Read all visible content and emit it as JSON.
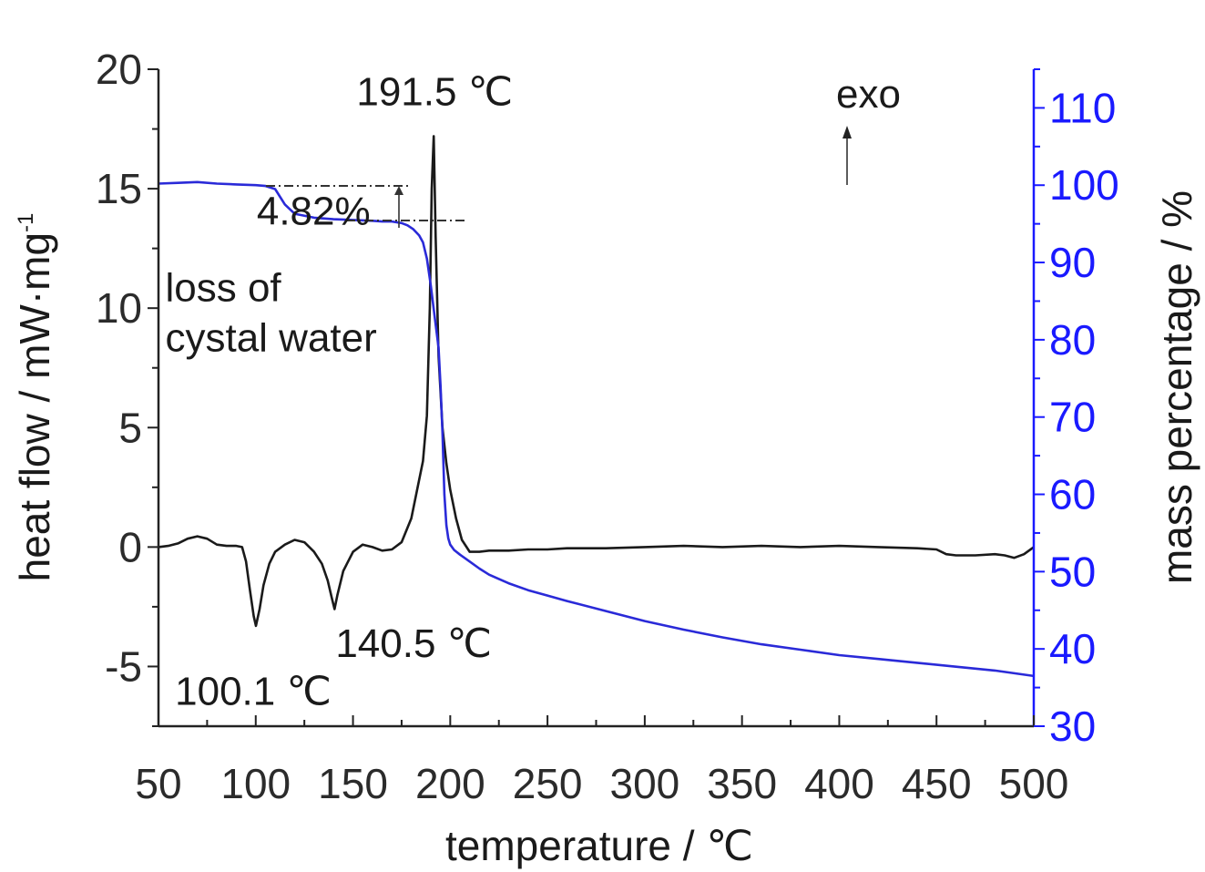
{
  "chart_data": {
    "type": "line",
    "xlabel": "temperature / ℃",
    "ylabel_left": "heat flow / mW·mg",
    "ylabel_left_sup": "-1",
    "ylabel_right": "mass percentage / %",
    "xlim": [
      50,
      500
    ],
    "ylim_left": [
      -7.5,
      20
    ],
    "ylim_right": [
      30,
      115
    ],
    "x_ticks": [
      50,
      100,
      150,
      200,
      250,
      300,
      350,
      400,
      450,
      500
    ],
    "y_left_ticks": [
      -5,
      0,
      5,
      10,
      15,
      20
    ],
    "y_right_ticks": [
      30,
      40,
      50,
      60,
      70,
      80,
      90,
      100,
      110
    ],
    "grid": false,
    "series": [
      {
        "axis": "left",
        "color": "#1a1a1a",
        "x": [
          50,
          55,
          60,
          65,
          70,
          75,
          80,
          85,
          90,
          93,
          95,
          97,
          99,
          100.1,
          102,
          104,
          107,
          110,
          115,
          120,
          125,
          130,
          134,
          137,
          139,
          140.5,
          142,
          145,
          150,
          155,
          160,
          165,
          170,
          175,
          180,
          183,
          186,
          188,
          189.5,
          190.5,
          191.5,
          192.5,
          194,
          196,
          198,
          200,
          203,
          206,
          210,
          215,
          220,
          230,
          240,
          250,
          260,
          270,
          280,
          300,
          320,
          340,
          360,
          380,
          400,
          420,
          440,
          450,
          455,
          460,
          470,
          480,
          485,
          490,
          495,
          500
        ],
        "y": [
          0,
          0.05,
          0.15,
          0.35,
          0.45,
          0.35,
          0.1,
          0.05,
          0.05,
          0,
          -0.6,
          -1.8,
          -2.9,
          -3.3,
          -2.6,
          -1.6,
          -0.7,
          -0.2,
          0.1,
          0.3,
          0.2,
          -0.2,
          -0.7,
          -1.4,
          -2.1,
          -2.6,
          -2.0,
          -1.0,
          -0.2,
          0.1,
          0.0,
          -0.15,
          -0.1,
          0.2,
          1.2,
          2.4,
          3.6,
          5.5,
          10.0,
          15.0,
          17.2,
          13.0,
          8.0,
          5.0,
          3.5,
          2.4,
          1.2,
          0.3,
          -0.2,
          -0.2,
          -0.15,
          -0.15,
          -0.1,
          -0.1,
          -0.05,
          -0.05,
          -0.05,
          0,
          0.05,
          0.0,
          0.05,
          0.0,
          0.05,
          0.0,
          -0.05,
          -0.1,
          -0.3,
          -0.35,
          -0.35,
          -0.3,
          -0.35,
          -0.45,
          -0.3,
          0.0
        ]
      },
      {
        "axis": "right",
        "color": "#2a2ad8",
        "x": [
          50,
          60,
          70,
          80,
          90,
          100,
          105,
          110,
          115,
          120,
          130,
          140,
          150,
          160,
          165,
          170,
          175,
          178,
          181,
          184,
          186,
          188,
          190,
          192,
          194,
          195,
          196,
          197,
          198,
          199,
          200,
          202,
          205,
          210,
          215,
          220,
          230,
          240,
          250,
          260,
          280,
          300,
          320,
          340,
          360,
          380,
          400,
          420,
          440,
          460,
          480,
          500
        ],
        "y": [
          100.2,
          100.3,
          100.4,
          100.2,
          100.1,
          100.0,
          99.9,
          99.5,
          97.5,
          96.3,
          95.8,
          95.6,
          95.5,
          95.4,
          95.3,
          95.3,
          95.1,
          94.8,
          94.3,
          93.5,
          92.6,
          90.5,
          87.0,
          83.0,
          79.0,
          74.0,
          68.0,
          60.0,
          56.0,
          54.3,
          53.5,
          52.8,
          52.2,
          51.3,
          50.4,
          49.6,
          48.5,
          47.6,
          46.9,
          46.2,
          44.9,
          43.6,
          42.5,
          41.5,
          40.6,
          39.9,
          39.2,
          38.7,
          38.2,
          37.7,
          37.2,
          36.5
        ]
      }
    ],
    "annotations": [
      {
        "text": "191.5 ℃",
        "x": 192,
        "y": 18.5,
        "axis": "left",
        "anchor": "middle"
      },
      {
        "text": "exo",
        "x": 415,
        "y": 18.4,
        "axis": "left",
        "anchor": "middle"
      },
      {
        "text": "4.82%",
        "x": 100.5,
        "y": 13.5,
        "axis": "left",
        "anchor": "start"
      },
      {
        "text": "loss of",
        "x": 53.5,
        "y": 10.3,
        "axis": "left",
        "anchor": "start"
      },
      {
        "text": "cystal water",
        "x": 53.5,
        "y": 8.2,
        "axis": "left",
        "anchor": "start"
      },
      {
        "text": "140.5 ℃",
        "x": 141,
        "y": -4.6,
        "axis": "left",
        "anchor": "start"
      },
      {
        "text": "100.1 ℃",
        "x": 58.5,
        "y": -6.6,
        "axis": "left",
        "anchor": "start"
      }
    ]
  }
}
